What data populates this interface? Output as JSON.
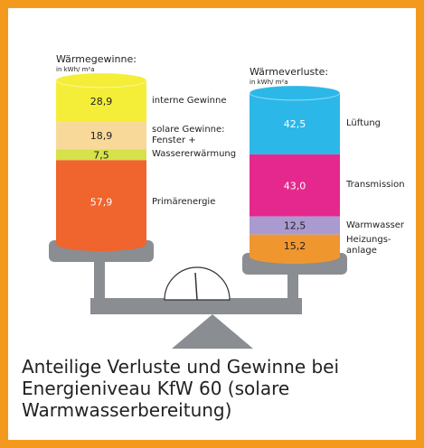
{
  "chart_data": [
    {
      "type": "stacked-cylinder",
      "title": "Wärmegewinne:",
      "subtitle": "in kWh/ m²a",
      "categories": [
        "interne Gewinne",
        "solare Gewinne: Fenster +",
        "Wassererwärmung",
        "Primärenergie"
      ],
      "values": [
        28.9,
        18.9,
        7.5,
        57.9
      ],
      "value_labels": [
        "28,9",
        "18,9",
        "7,5",
        "57,9"
      ],
      "colors": [
        "#f4ee38",
        "#f8d99a",
        "#d6e24a",
        "#f0642d"
      ]
    },
    {
      "type": "stacked-cylinder",
      "title": "Wärmeverluste:",
      "subtitle": "in kWh/ m²a",
      "categories": [
        "Lüftung",
        "Transmission",
        "Warmwasser",
        "Heizungs-anlage"
      ],
      "values": [
        42.5,
        43.0,
        12.5,
        15.2
      ],
      "value_labels": [
        "42,5",
        "43,0",
        "12,5",
        "15,2"
      ],
      "colors": [
        "#2bb8e8",
        "#e5288d",
        "#a99bd0",
        "#f0962f"
      ]
    }
  ],
  "caption": "Anteilige Verluste und Gewinne bei Energieniveau KfW 60 (solare Warmwasserbereitung)"
}
